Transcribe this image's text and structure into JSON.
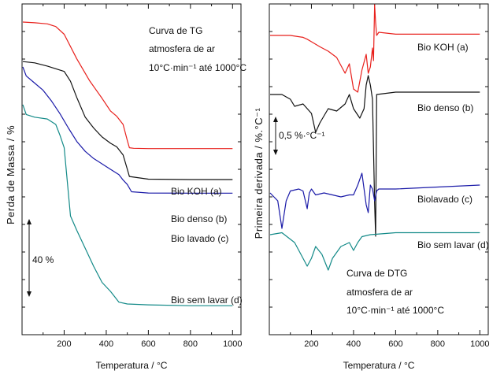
{
  "chart_data": [
    {
      "type": "line",
      "title": "",
      "xlabel": "Temperatura / °C",
      "ylabel": "Perda de Massa / %",
      "xlim": [
        0,
        1040
      ],
      "x_ticks": [
        200,
        400,
        600,
        800,
        1000
      ],
      "scale_bar_label": "40 %",
      "annotation": [
        "Curva de TG",
        "atmosfera de ar",
        "10°C·min⁻¹ até 1000°C"
      ],
      "grid": false,
      "series": [
        {
          "name": "Bio KOH (a)",
          "color": "#e8201c",
          "x": [
            0,
            60,
            120,
            160,
            200,
            260,
            320,
            380,
            420,
            450,
            480,
            500,
            510,
            530,
            600,
            800,
            1000
          ],
          "y": [
            100,
            99.6,
            99.0,
            97.5,
            93.2,
            79.5,
            67.5,
            57.5,
            50.5,
            47.5,
            43,
            34,
            30,
            29.7,
            29.5,
            29.5,
            29.5
          ]
        },
        {
          "name": "Bio denso (b)",
          "color": "#111111",
          "x": [
            0,
            60,
            120,
            160,
            200,
            230,
            260,
            300,
            340,
            380,
            420,
            450,
            480,
            500,
            510,
            600,
            800,
            1000
          ],
          "y": [
            78,
            77.3,
            75.5,
            74,
            72.5,
            67,
            58,
            47,
            41,
            36,
            32.5,
            30.5,
            26,
            18,
            14,
            12.5,
            12.3,
            12.3
          ]
        },
        {
          "name": "Bio lavado (c)",
          "color": "#1a1aa8",
          "x": [
            0,
            20,
            60,
            100,
            140,
            180,
            220,
            260,
            300,
            340,
            380,
            420,
            460,
            480,
            500,
            520,
            600,
            800,
            1000
          ],
          "y": [
            75,
            70,
            66,
            62,
            56,
            49,
            41,
            33.5,
            28,
            24,
            21,
            18,
            15,
            12,
            9.5,
            5.5,
            4.8,
            4.7,
            4.7
          ]
        },
        {
          "name": "Bio sem lavar (d)",
          "color": "#138a88",
          "x": [
            0,
            20,
            60,
            120,
            160,
            180,
            200,
            230,
            260,
            300,
            340,
            380,
            420,
            440,
            460,
            500,
            600,
            800,
            1000
          ],
          "y": [
            54,
            48.5,
            47,
            46,
            43,
            37,
            30,
            -8,
            -16,
            -26,
            -36,
            -45,
            -50,
            -53,
            -56,
            -57,
            -57.5,
            -58,
            -58
          ]
        }
      ],
      "legend_placement": "right of curves"
    },
    {
      "type": "line",
      "title": "",
      "xlabel": "Temperatura / °C",
      "ylabel": "Primeira derivada / %.°C⁻¹",
      "xlim": [
        0,
        1040
      ],
      "x_ticks": [
        200,
        400,
        600,
        800,
        1000
      ],
      "scale_bar_label": "0,5 %·°C⁻¹",
      "annotation": [
        "Curva de DTG",
        "atmosfera de ar",
        "10°C·min⁻¹ até 1000°C"
      ],
      "grid": false,
      "series": [
        {
          "name": "Bio KOH (a)",
          "color": "#e8201c",
          "x": [
            0,
            100,
            160,
            180,
            200,
            240,
            280,
            320,
            360,
            380,
            400,
            420,
            440,
            460,
            470,
            480,
            490,
            495,
            500,
            505,
            510,
            520,
            600,
            800,
            1000
          ],
          "y": [
            0,
            0,
            -0.03,
            -0.06,
            -0.1,
            -0.18,
            -0.25,
            -0.35,
            -0.6,
            -0.45,
            -0.85,
            -0.9,
            -0.55,
            -0.3,
            -0.6,
            -0.5,
            -0.2,
            -0.4,
            0.5,
            0.2,
            0.0,
            0.05,
            0.02,
            0.02,
            0.02
          ]
        },
        {
          "name": "Bio denso (b)",
          "color": "#111111",
          "x": [
            0,
            60,
            100,
            120,
            160,
            200,
            220,
            240,
            280,
            320,
            360,
            380,
            400,
            430,
            450,
            460,
            470,
            480,
            490,
            500,
            505,
            510,
            600,
            800,
            1000
          ],
          "y": [
            0,
            0,
            -0.1,
            -0.25,
            -0.2,
            -0.4,
            -0.8,
            -0.6,
            -0.3,
            -0.35,
            -0.2,
            0.0,
            -0.3,
            -0.5,
            -0.3,
            0.2,
            0.4,
            0.2,
            -0.1,
            -2.3,
            -3.0,
            0.0,
            0.05,
            0.05,
            0.05
          ]
        },
        {
          "name": "Biolavado (c)",
          "color": "#1a1aa8",
          "x": [
            0,
            40,
            60,
            80,
            100,
            140,
            160,
            180,
            190,
            200,
            220,
            260,
            300,
            340,
            380,
            400,
            420,
            440,
            450,
            460,
            470,
            480,
            490,
            500,
            510,
            520,
            600,
            800,
            1000
          ],
          "y": [
            0,
            -0.2,
            -0.9,
            -0.2,
            0.05,
            0.1,
            0.05,
            -0.4,
            0.0,
            0.1,
            -0.05,
            0.0,
            -0.05,
            -0.1,
            -0.05,
            -0.05,
            0.2,
            0.5,
            0.1,
            -0.3,
            -0.5,
            0.2,
            0.1,
            -0.2,
            0.05,
            0.1,
            0.1,
            0.15,
            0.2
          ]
        },
        {
          "name": "Bio sem lavar (d)",
          "color": "#138a88",
          "x": [
            0,
            60,
            120,
            160,
            180,
            200,
            220,
            250,
            280,
            300,
            340,
            380,
            400,
            420,
            440,
            480,
            600,
            800,
            1000
          ],
          "y": [
            0,
            0.05,
            -0.2,
            -0.6,
            -0.8,
            -0.6,
            -0.3,
            -0.5,
            -0.9,
            -0.6,
            -0.3,
            -0.2,
            -0.4,
            -0.2,
            -0.05,
            0.0,
            0.05,
            0.05,
            0.05
          ]
        }
      ],
      "legend_placement": "right of curves"
    }
  ]
}
